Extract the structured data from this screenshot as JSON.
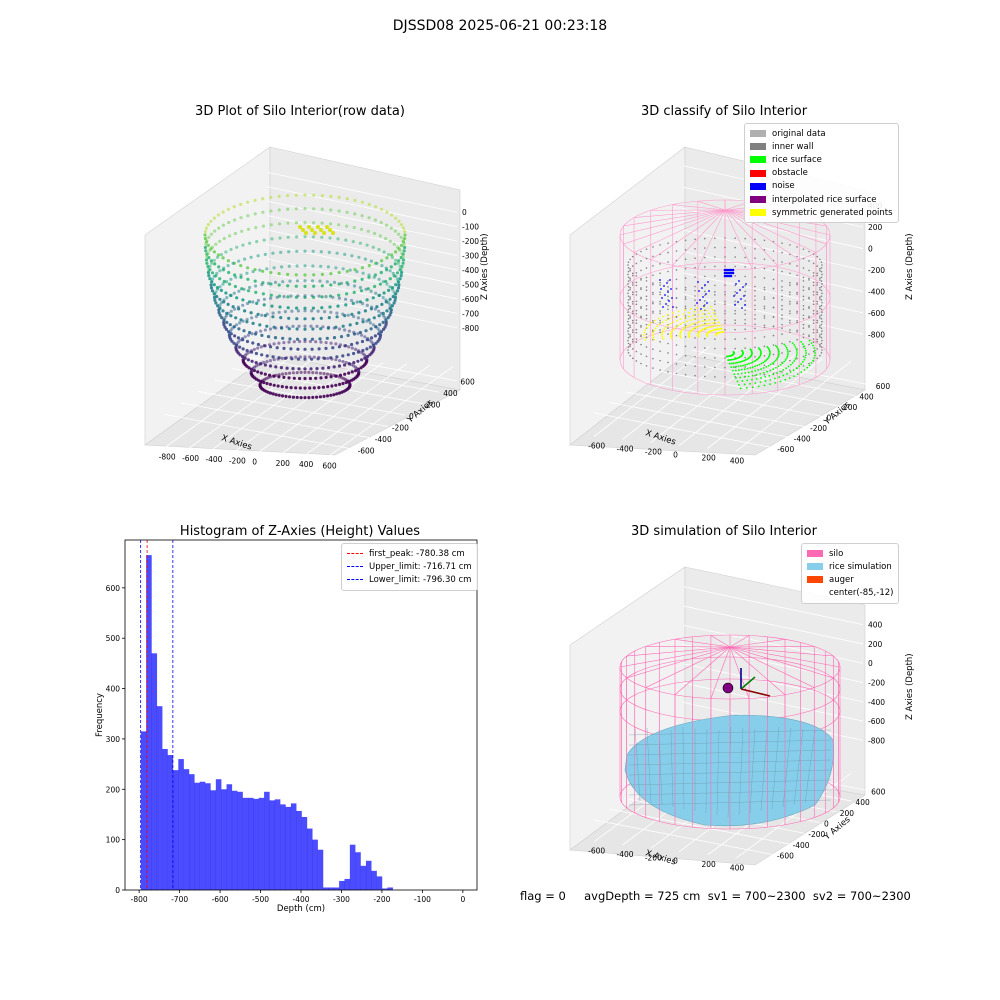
{
  "figure": {
    "suptitle": "DJSSD08 2025-06-21 00:23:18",
    "footer": "flag = 0     avgDepth = 725 cm  sv1 = 700~2300  sv2 = 700~2300"
  },
  "chart_data": [
    {
      "type": "scatter",
      "title": "3D Plot of Silo Interior(row data)",
      "xlabel": "X Axies",
      "ylabel": "Y Axies",
      "zlabel": "Z Axies (Depth)",
      "x_ticks": [
        "-800",
        "-600",
        "-400",
        "-200",
        "0",
        "200",
        "400",
        "600"
      ],
      "y_ticks": [
        "600",
        "400",
        "200",
        "0",
        "-200",
        "-400",
        "-600"
      ],
      "z_ticks": [
        "0",
        "-100",
        "-200",
        "-300",
        "-400",
        "-500",
        "-600",
        "-700",
        "-800"
      ],
      "xlim": [
        -800,
        600
      ],
      "ylim": [
        -600,
        600
      ],
      "zlim": [
        -850,
        0
      ],
      "colormap": "viridis"
    },
    {
      "type": "scatter",
      "title": "3D classify of Silo Interior",
      "xlabel": "X Axies",
      "ylabel": "Y Axies",
      "zlabel": "Z Axies (Depth)",
      "x_ticks": [
        "-600",
        "-400",
        "-200",
        "0",
        "200",
        "400"
      ],
      "y_ticks": [
        "600",
        "400",
        "200",
        "0",
        "-200",
        "-400",
        "-600"
      ],
      "z_ticks": [
        "400",
        "200",
        "0",
        "-200",
        "-400",
        "-600",
        "-800"
      ],
      "legend": [
        {
          "label": "original data",
          "color": "#b0b0b0"
        },
        {
          "label": "inner wall",
          "color": "#808080"
        },
        {
          "label": "rice surface",
          "color": "#00ff00"
        },
        {
          "label": "obstacle",
          "color": "#ff0000"
        },
        {
          "label": "noise",
          "color": "#0000ff"
        },
        {
          "label": "interpolated rice surface",
          "color": "#800080"
        },
        {
          "label": "symmetric generated points",
          "color": "#ffff00"
        }
      ],
      "legend_position": "top-right"
    },
    {
      "type": "bar",
      "title": "Histogram of Z-Axies (Height) Values",
      "xlabel": "Depth (cm)",
      "ylabel": "Frequency",
      "xlim": [
        -835,
        35
      ],
      "ylim": [
        0,
        695
      ],
      "x_ticks": [
        -800,
        -700,
        -600,
        -500,
        -400,
        -300,
        -200,
        -100,
        0
      ],
      "y_ticks": [
        0,
        100,
        200,
        300,
        400,
        500,
        600
      ],
      "bar_color": "#0000ff",
      "bins_start": -796,
      "bin_width": 13.25,
      "values": [
        315,
        665,
        470,
        365,
        280,
        268,
        238,
        260,
        240,
        230,
        213,
        215,
        212,
        198,
        220,
        200,
        210,
        197,
        195,
        183,
        183,
        181,
        183,
        195,
        178,
        180,
        170,
        165,
        172,
        157,
        145,
        122,
        100,
        80,
        5,
        5,
        5,
        18,
        22,
        90,
        75,
        48,
        58,
        38,
        27,
        3,
        5
      ],
      "lines": [
        {
          "label": "first_peak: -780.38 cm",
          "x": -780.38,
          "color": "#ff0000"
        },
        {
          "label": "Upper_limit: -716.71 cm",
          "x": -716.71,
          "color": "#0000ff"
        },
        {
          "label": "Lower_limit: -796.30 cm",
          "x": -796.3,
          "color": "#0000ff"
        }
      ],
      "legend_position": "top-right",
      "grid": false
    },
    {
      "type": "scatter",
      "title": "3D simulation of Silo Interior",
      "xlabel": "X Axies",
      "ylabel": "Y Axies",
      "zlabel": "Z Axies (Depth)",
      "x_ticks": [
        "-600",
        "-400",
        "-200",
        "0",
        "200",
        "400"
      ],
      "y_ticks": [
        "600",
        "400",
        "200",
        "0",
        "-200",
        "-400",
        "-600"
      ],
      "z_ticks": [
        "400",
        "200",
        "0",
        "-200",
        "-400",
        "-600",
        "-800"
      ],
      "legend": [
        {
          "label": "silo",
          "color": "#ff69b4"
        },
        {
          "label": "rice simulation",
          "color": "#87ceeb"
        },
        {
          "label": "auger",
          "color": "#ff4500"
        },
        {
          "label": "center(-85,-12)",
          "color": ""
        }
      ],
      "legend_position": "top-right"
    }
  ]
}
